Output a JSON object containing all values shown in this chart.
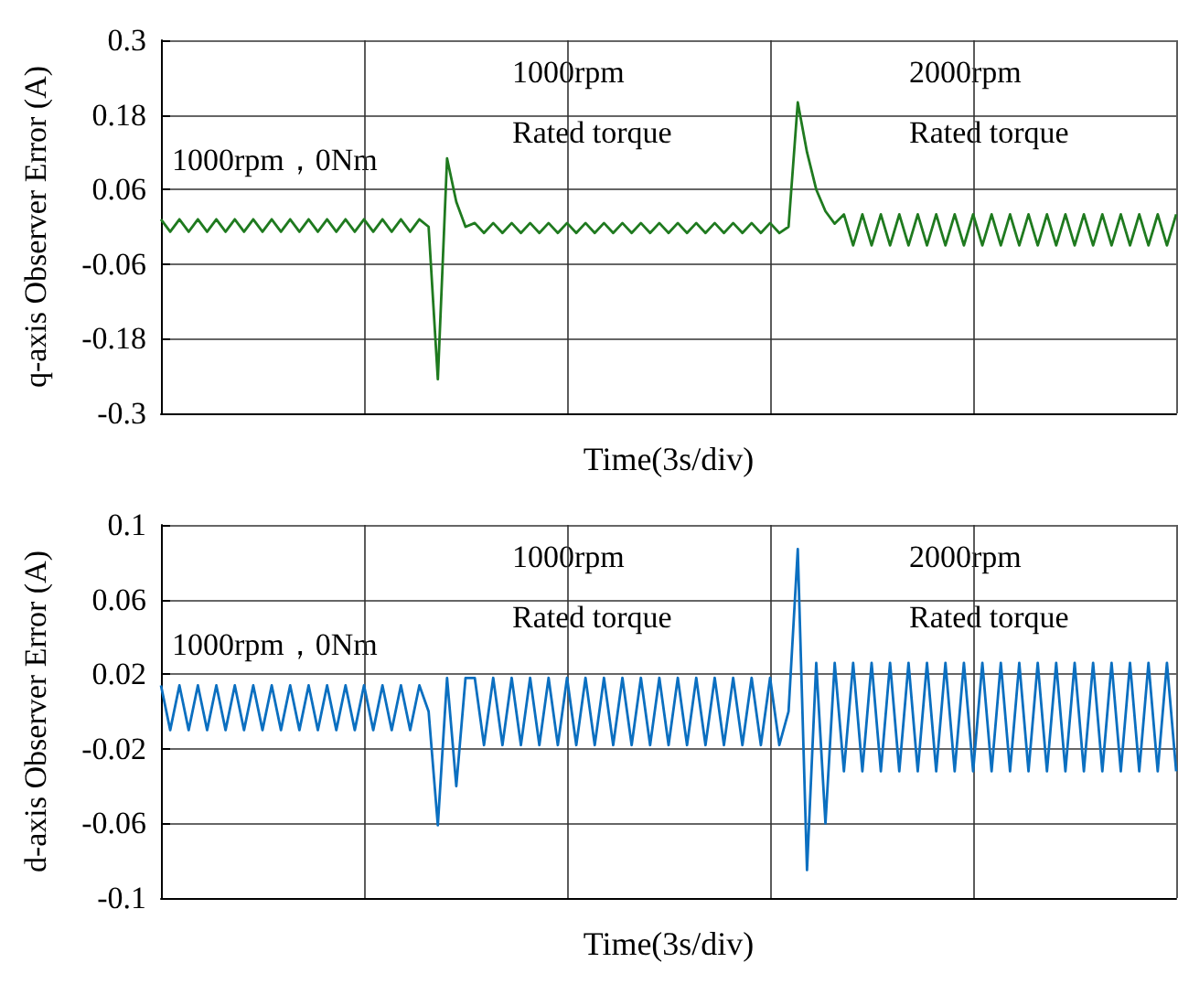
{
  "chart_data": [
    {
      "type": "line",
      "xlabel": "Time(3s/div)",
      "ylabel": "q-axis Observer Error (A)",
      "ylim": [
        -0.3,
        0.3
      ],
      "yticks": [
        -0.3,
        -0.18,
        -0.06,
        0.06,
        0.18,
        0.3
      ],
      "grid": true,
      "tick_labels": "y",
      "categories": [
        null,
        null,
        null,
        null,
        null,
        null,
        null,
        null,
        null,
        null,
        null,
        null,
        null,
        null,
        null,
        null,
        null,
        null,
        null,
        null,
        null,
        null,
        null,
        null,
        null,
        null,
        null,
        null,
        null,
        null,
        null,
        null,
        null,
        null,
        null,
        null,
        null,
        null,
        null,
        null,
        null,
        null,
        null,
        null,
        null,
        null,
        null,
        null,
        null,
        null,
        null,
        null,
        null,
        null,
        null,
        null,
        null,
        null,
        null,
        null,
        null,
        null,
        null,
        null,
        null,
        null,
        null,
        null,
        null,
        null,
        null,
        null,
        null,
        null,
        null,
        null,
        null,
        null,
        null,
        null,
        null,
        null,
        null,
        null,
        null,
        null,
        null,
        null,
        null,
        null,
        null,
        null,
        null,
        null,
        null,
        null,
        null,
        null,
        null,
        null,
        null,
        null,
        null,
        null,
        null,
        null,
        null,
        null,
        null,
        null,
        null
      ],
      "series": [
        {
          "color": "#1f7a1f",
          "values": [
            0.012,
            -0.008,
            0.012,
            -0.008,
            0.012,
            -0.008,
            0.012,
            -0.008,
            0.012,
            -0.008,
            0.012,
            -0.008,
            0.012,
            -0.008,
            0.012,
            -0.008,
            0.012,
            -0.008,
            0.012,
            -0.008,
            0.012,
            -0.008,
            0.012,
            -0.008,
            0.012,
            -0.008,
            0.012,
            -0.008,
            0.012,
            0.0,
            -0.245,
            0.11,
            0.04,
            0.0,
            0.006,
            -0.01,
            0.006,
            -0.01,
            0.006,
            -0.01,
            0.006,
            -0.01,
            0.006,
            -0.01,
            0.006,
            -0.01,
            0.006,
            -0.01,
            0.006,
            -0.01,
            0.006,
            -0.01,
            0.006,
            -0.01,
            0.006,
            -0.01,
            0.006,
            -0.01,
            0.006,
            -0.01,
            0.006,
            -0.01,
            0.006,
            -0.01,
            0.006,
            -0.01,
            0.006,
            -0.01,
            0.0,
            0.2,
            0.12,
            0.06,
            0.025,
            0.005,
            0.02,
            -0.03,
            0.02,
            -0.03,
            0.02,
            -0.03,
            0.02,
            -0.03,
            0.02,
            -0.03,
            0.02,
            -0.03,
            0.02,
            -0.03,
            0.02,
            -0.03,
            0.02,
            -0.03,
            0.02,
            -0.03,
            0.02,
            -0.03,
            0.02,
            -0.03,
            0.02,
            -0.03,
            0.02,
            -0.03,
            0.02,
            -0.03,
            0.02,
            -0.03,
            0.02,
            -0.03,
            0.02,
            -0.03,
            0.02
          ]
        }
      ],
      "annotations": [
        "1000rpm，0Nm",
        "1000rpm",
        "Rated torque",
        "2000rpm",
        "Rated torque"
      ]
    },
    {
      "type": "line",
      "xlabel": "Time(3s/div)",
      "ylabel": "d-axis Observer Error (A)",
      "ylim": [
        -0.1,
        0.1
      ],
      "yticks": [
        -0.1,
        -0.06,
        -0.02,
        0.02,
        0.06,
        0.1
      ],
      "grid": true,
      "tick_labels": "y",
      "categories": [
        null,
        null,
        null,
        null,
        null,
        null,
        null,
        null,
        null,
        null,
        null,
        null,
        null,
        null,
        null,
        null,
        null,
        null,
        null,
        null,
        null,
        null,
        null,
        null,
        null,
        null,
        null,
        null,
        null,
        null,
        null,
        null,
        null,
        null,
        null,
        null,
        null,
        null,
        null,
        null,
        null,
        null,
        null,
        null,
        null,
        null,
        null,
        null,
        null,
        null,
        null,
        null,
        null,
        null,
        null,
        null,
        null,
        null,
        null,
        null,
        null,
        null,
        null,
        null,
        null,
        null,
        null,
        null,
        null,
        null,
        null,
        null,
        null,
        null,
        null,
        null,
        null,
        null,
        null,
        null,
        null,
        null,
        null,
        null,
        null,
        null,
        null,
        null,
        null,
        null,
        null,
        null,
        null,
        null,
        null,
        null,
        null,
        null,
        null,
        null,
        null,
        null,
        null,
        null,
        null,
        null,
        null,
        null,
        null,
        null,
        null
      ],
      "series": [
        {
          "color": "#0b6fc0",
          "values": [
            0.014,
            -0.01,
            0.014,
            -0.01,
            0.014,
            -0.01,
            0.014,
            -0.01,
            0.014,
            -0.01,
            0.014,
            -0.01,
            0.014,
            -0.01,
            0.014,
            -0.01,
            0.014,
            -0.01,
            0.014,
            -0.01,
            0.014,
            -0.01,
            0.014,
            -0.01,
            0.014,
            -0.01,
            0.014,
            -0.01,
            0.014,
            0.0,
            -0.061,
            0.018,
            -0.04,
            0.018,
            0.018,
            -0.018,
            0.018,
            -0.018,
            0.018,
            -0.018,
            0.018,
            -0.018,
            0.018,
            -0.018,
            0.018,
            -0.018,
            0.018,
            -0.018,
            0.018,
            -0.018,
            0.018,
            -0.018,
            0.018,
            -0.018,
            0.018,
            -0.018,
            0.018,
            -0.018,
            0.018,
            -0.018,
            0.018,
            -0.018,
            0.018,
            -0.018,
            0.018,
            -0.018,
            0.018,
            -0.018,
            0.0,
            0.087,
            -0.085,
            0.026,
            -0.06,
            0.026,
            -0.032,
            0.026,
            -0.032,
            0.026,
            -0.032,
            0.026,
            -0.032,
            0.026,
            -0.032,
            0.026,
            -0.032,
            0.026,
            -0.032,
            0.026,
            -0.032,
            0.026,
            -0.032,
            0.026,
            -0.032,
            0.026,
            -0.032,
            0.026,
            -0.032,
            0.026,
            -0.032,
            0.026,
            -0.032,
            0.026,
            -0.032,
            0.026,
            -0.032,
            0.026,
            -0.032,
            0.026,
            -0.032,
            0.026,
            -0.032
          ]
        }
      ],
      "annotations": [
        "1000rpm，0Nm",
        "1000rpm",
        "Rated torque",
        "2000rpm",
        "Rated torque"
      ]
    }
  ]
}
